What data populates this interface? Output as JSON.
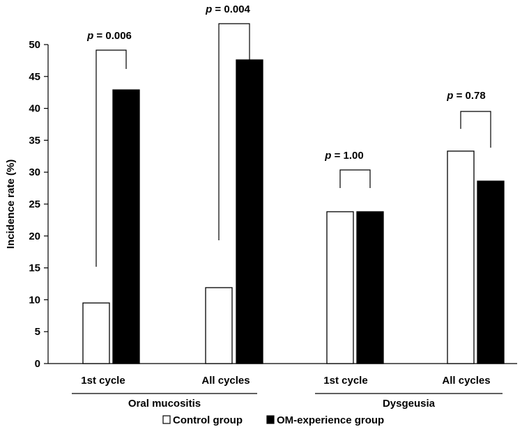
{
  "chart_data": {
    "type": "bar",
    "ylabel": "Incidence rate (%)",
    "ylim": [
      0,
      50
    ],
    "yticks": [
      "0",
      "5",
      "10",
      "15",
      "20",
      "25",
      "30",
      "35",
      "40",
      "45",
      "50"
    ],
    "groups": [
      {
        "name": "Oral mucositis",
        "categories": [
          "1st cycle",
          "All cycles"
        ]
      },
      {
        "name": "Dysgeusia",
        "categories": [
          "1st cycle",
          "All cycles"
        ]
      }
    ],
    "categories": [
      "1st cycle",
      "All cycles",
      "1st cycle",
      "All cycles"
    ],
    "series": [
      {
        "name": "Control group",
        "color": "#ffffff",
        "values": [
          9.5,
          11.9,
          23.8,
          33.3
        ]
      },
      {
        "name": "OM-experience group",
        "color": "#000000",
        "values": [
          42.9,
          47.6,
          23.8,
          28.6
        ]
      }
    ],
    "annotations": [
      {
        "p_symbol": "p",
        "text": "= 0.006"
      },
      {
        "p_symbol": "p",
        "text": "= 0.004"
      },
      {
        "p_symbol": "p",
        "text": "= 1.00"
      },
      {
        "p_symbol": "p",
        "text": "= 0.78"
      }
    ],
    "legend": {
      "position": "bottom"
    }
  }
}
